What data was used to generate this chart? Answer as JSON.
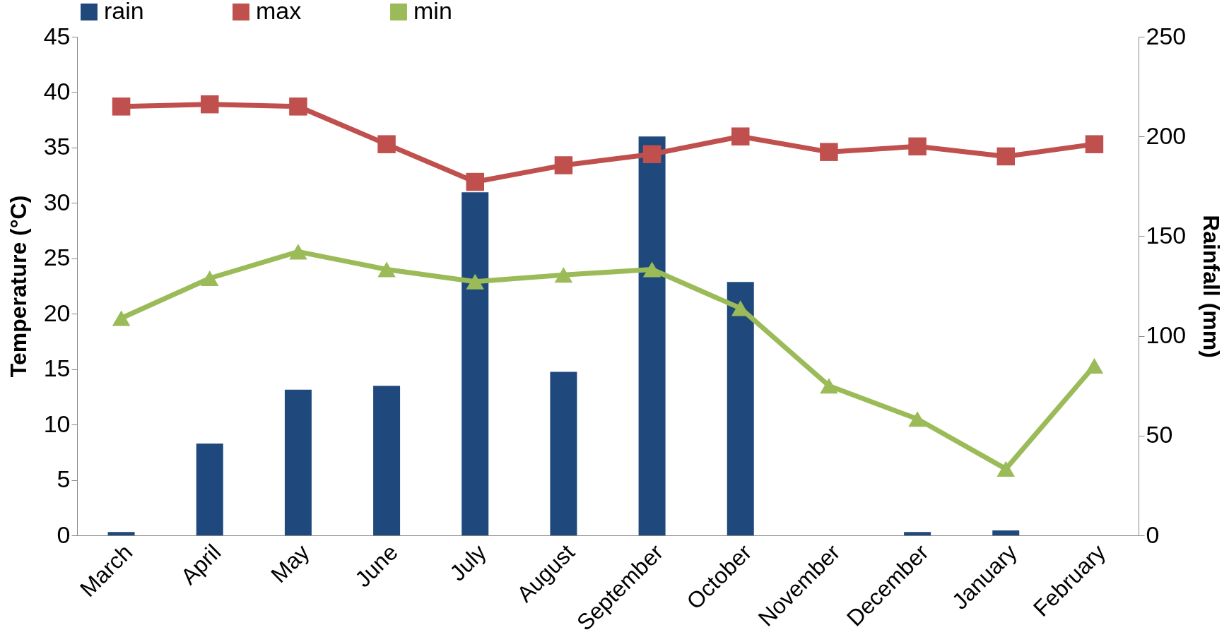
{
  "chart_data": {
    "type": "bar",
    "categories": [
      "March",
      "April",
      "May",
      "June",
      "July",
      "August",
      "September",
      "October",
      "November",
      "December",
      "January",
      "February"
    ],
    "ylabel": "Temperature (°C)",
    "y2label": "Rainfall (mm)",
    "ylim": [
      0,
      45
    ],
    "yticks": [
      0,
      5,
      10,
      15,
      20,
      25,
      30,
      35,
      40,
      45
    ],
    "y2lim": [
      0,
      250
    ],
    "y2ticks": [
      0,
      50,
      100,
      150,
      200,
      250
    ],
    "legend": "top",
    "grid": false,
    "series": [
      {
        "name": "rain",
        "axis": "y2",
        "color": "#1f497d",
        "values": [
          1.7,
          46,
          73,
          75,
          172,
          82,
          200,
          127,
          0,
          1.7,
          2.5,
          0
        ]
      },
      {
        "name": "max",
        "type": "line",
        "marker": "square",
        "color": "#c0504d",
        "values": [
          38.7,
          38.9,
          38.7,
          35.3,
          31.9,
          33.4,
          34.4,
          36.0,
          34.6,
          35.1,
          34.2,
          35.3
        ]
      },
      {
        "name": "min",
        "type": "line",
        "marker": "triangle",
        "color": "#9bbb59",
        "values": [
          19.6,
          23.2,
          25.6,
          24.0,
          22.9,
          23.5,
          24.0,
          20.5,
          13.5,
          10.5,
          6.0,
          15.3
        ]
      }
    ]
  }
}
